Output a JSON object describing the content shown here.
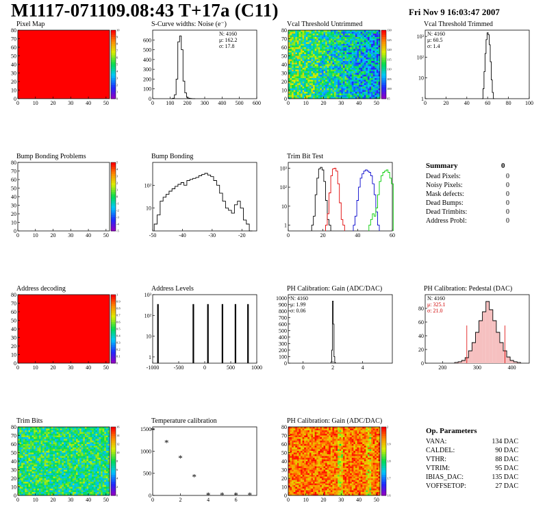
{
  "header": {
    "title": "M1117-071109.08:43 T+17a (C11)",
    "date": "Fri Nov  9 16:03:47 2007"
  },
  "colors": {
    "red": "#ff0000",
    "black": "#000000",
    "blue": "#0000cc",
    "green": "#00cc00",
    "darkred": "#cc0000"
  },
  "chart_data": [
    {
      "id": "pixel-map",
      "type": "heatmap",
      "title": "Pixel Map",
      "xlim": [
        0,
        52
      ],
      "ylim": [
        0,
        80
      ],
      "xticks": [
        "0",
        "10",
        "20",
        "30",
        "40",
        "50"
      ],
      "yticks": [
        "0",
        "10",
        "20",
        "30",
        "40",
        "50",
        "60",
        "70",
        "80"
      ],
      "fill": "uniform",
      "palette": "rainbow",
      "value": 10,
      "zticks": [
        "10",
        "9",
        "8",
        "7",
        "6",
        "5",
        "4",
        "3",
        "2",
        "1",
        "0"
      ]
    },
    {
      "id": "scurve",
      "type": "bar",
      "title": "S-Curve widths: Noise (e⁻)",
      "xlim": [
        0,
        600
      ],
      "ylim": [
        0,
        700
      ],
      "xticks": [
        "0",
        "100",
        "200",
        "300",
        "400",
        "500",
        "600"
      ],
      "yticks": [
        "0",
        "100",
        "200",
        "300",
        "400",
        "500",
        "600"
      ],
      "x": [
        110,
        120,
        130,
        140,
        150,
        160,
        170,
        180,
        190,
        200,
        210,
        220,
        230,
        240
      ],
      "values": [
        0,
        5,
        40,
        200,
        580,
        640,
        500,
        180,
        60,
        15,
        5,
        2,
        1,
        0
      ],
      "stats": [
        "N: 4160",
        "μ: 162.2",
        "σ: 17.8"
      ]
    },
    {
      "id": "vcal-untrimmed",
      "type": "heatmap",
      "title": "Vcal Threshold Untrimmed",
      "xlim": [
        0,
        52
      ],
      "ylim": [
        0,
        80
      ],
      "xticks": [
        "0",
        "10",
        "20",
        "30",
        "40",
        "50"
      ],
      "yticks": [
        "0",
        "10",
        "20",
        "30",
        "40",
        "50",
        "60",
        "70",
        "80"
      ],
      "fill": "noise",
      "palette": "rainbow",
      "zticks": [
        "130",
        "125",
        "120",
        "115",
        "110",
        "105",
        "100",
        "95"
      ]
    },
    {
      "id": "vcal-trimmed",
      "type": "bar",
      "title": "Vcal Threshold Trimmed",
      "log": true,
      "xlim": [
        0,
        100
      ],
      "ylim": [
        1,
        2000
      ],
      "xticks": [
        "0",
        "20",
        "40",
        "60",
        "80",
        "100"
      ],
      "yticks": [
        "1",
        "10",
        "10²",
        "10³"
      ],
      "x": [
        55,
        56,
        57,
        58,
        59,
        60,
        61,
        62,
        63,
        64,
        65,
        66
      ],
      "values": [
        1,
        3,
        20,
        150,
        700,
        1500,
        1200,
        400,
        60,
        8,
        2,
        1
      ],
      "stats": [
        "N: 4160",
        "μ: 60.5",
        "σ:  1.4"
      ]
    },
    {
      "id": "bump-problems",
      "type": "heatmap",
      "title": "Bump Bonding Problems",
      "xlim": [
        0,
        52
      ],
      "ylim": [
        0,
        80
      ],
      "xticks": [
        "0",
        "10",
        "20",
        "30",
        "40",
        "50"
      ],
      "yticks": [
        "0",
        "10",
        "20",
        "30",
        "40",
        "50",
        "60",
        "70",
        "80"
      ],
      "fill": "empty",
      "palette": "rainbow",
      "zticks": [
        "5",
        "4",
        "3",
        "2",
        "1",
        "0",
        "-1",
        "-2",
        "-3",
        "-4",
        "-5"
      ]
    },
    {
      "id": "bump-bonding",
      "type": "line",
      "title": "Bump Bonding",
      "log": true,
      "xlim": [
        -50,
        -15
      ],
      "ylim": [
        1,
        1000
      ],
      "xticks": [
        "-50",
        "-40",
        "-30",
        "-20"
      ],
      "yticks": [
        "10",
        "10²"
      ],
      "x": [
        -49,
        -48,
        -47,
        -46,
        -45,
        -44,
        -43,
        -42,
        -41,
        -40,
        -39,
        -38,
        -37,
        -36,
        -35,
        -34,
        -33,
        -32,
        -31,
        -30,
        -29,
        -28,
        -27,
        -26,
        -25,
        -24,
        -23,
        -22,
        -21,
        -20,
        -19,
        -18,
        -17
      ],
      "values": [
        2,
        5,
        20,
        30,
        40,
        55,
        70,
        90,
        110,
        130,
        100,
        160,
        180,
        200,
        220,
        260,
        300,
        330,
        280,
        240,
        160,
        100,
        45,
        20,
        10,
        8,
        6,
        14,
        20,
        10,
        3,
        2,
        1
      ]
    },
    {
      "id": "trim-bit-test",
      "type": "line",
      "title": "Trim Bit Test",
      "log": true,
      "xlim": [
        0,
        60
      ],
      "ylim": [
        0.5,
        2000
      ],
      "xticks": [
        "0",
        "20",
        "40",
        "60"
      ],
      "yticks": [
        "1",
        "10",
        "10²",
        "10³"
      ],
      "series": [
        {
          "color": "black",
          "x": [
            14,
            15,
            16,
            17,
            18,
            19,
            20,
            21,
            22,
            23,
            24
          ],
          "values": [
            1,
            3,
            40,
            300,
            900,
            1100,
            800,
            200,
            20,
            2,
            1
          ]
        },
        {
          "color": "red",
          "x": [
            22,
            23,
            24,
            25,
            26,
            27,
            28,
            29,
            30,
            31,
            32
          ],
          "values": [
            1,
            4,
            50,
            400,
            900,
            1000,
            700,
            150,
            15,
            2,
            1
          ]
        },
        {
          "color": "blue",
          "x": [
            38,
            39,
            40,
            41,
            42,
            43,
            44,
            45,
            46,
            47,
            48,
            49,
            50,
            51,
            52
          ],
          "values": [
            1,
            3,
            20,
            100,
            300,
            500,
            700,
            800,
            700,
            600,
            400,
            150,
            40,
            5,
            1
          ]
        },
        {
          "color": "green",
          "x": [
            47,
            48,
            49,
            50,
            51,
            52,
            53,
            54,
            55,
            56,
            57,
            58,
            59,
            60
          ],
          "values": [
            1,
            2,
            4,
            3,
            8,
            40,
            200,
            400,
            600,
            700,
            800,
            600,
            300,
            150
          ]
        }
      ]
    },
    {
      "id": "address-decoding",
      "type": "heatmap",
      "title": "Address decoding",
      "xlim": [
        0,
        52
      ],
      "ylim": [
        0,
        80
      ],
      "xticks": [
        "0",
        "10",
        "20",
        "30",
        "40",
        "50"
      ],
      "yticks": [
        "0",
        "10",
        "20",
        "30",
        "40",
        "50",
        "60",
        "70",
        "80"
      ],
      "fill": "uniform",
      "palette": "rainbow",
      "value": 1,
      "zticks": [
        "1",
        "0.9",
        "0.8",
        "0.7",
        "0.6",
        "0.5",
        "0.4",
        "0.3",
        "0.2",
        "0.1",
        "0"
      ]
    },
    {
      "id": "address-levels",
      "type": "bar",
      "title": "Address Levels",
      "log": true,
      "xlim": [
        -1000,
        1000
      ],
      "ylim": [
        0.5,
        1000
      ],
      "xticks": [
        "-1000",
        "-500",
        "0",
        "500",
        "1000"
      ],
      "yticks": [
        "1",
        "10",
        "10²",
        "10³"
      ],
      "x": [
        -900,
        -220,
        60,
        340,
        590,
        830
      ],
      "values": [
        350,
        350,
        350,
        350,
        350,
        350
      ]
    },
    {
      "id": "ph-gain",
      "type": "bar",
      "title": "PH Calibration: Gain (ADC/DAC)",
      "xlim": [
        -1,
        6
      ],
      "ylim": [
        0,
        1050
      ],
      "xticks": [
        "0",
        "2",
        "4"
      ],
      "yticks": [
        "0",
        "100",
        "200",
        "300",
        "400",
        "500",
        "600",
        "700",
        "800",
        "900",
        "1000"
      ],
      "x": [
        1.9,
        1.95,
        2.0,
        2.05,
        2.1,
        2.15
      ],
      "values": [
        20,
        200,
        950,
        600,
        100,
        10
      ],
      "stats": [
        "N: 4160",
        "μ: 1.99",
        "σ: 0.06"
      ]
    },
    {
      "id": "ph-pedestal",
      "type": "bar",
      "title": "PH Calibration: Pedestal (DAC)",
      "xlim": [
        150,
        450
      ],
      "ylim": [
        0,
        100
      ],
      "xticks": [
        "200",
        "300",
        "400"
      ],
      "yticks": [
        "0",
        "20",
        "40",
        "60",
        "80"
      ],
      "x": [
        240,
        250,
        260,
        270,
        280,
        290,
        300,
        310,
        320,
        330,
        340,
        350,
        360,
        370,
        380,
        390,
        400,
        410,
        420
      ],
      "values": [
        1,
        2,
        4,
        8,
        18,
        30,
        45,
        62,
        75,
        90,
        78,
        62,
        45,
        30,
        18,
        9,
        4,
        2,
        1
      ],
      "stats": [
        "N: 4160",
        "μ: 325.1",
        "σ: 21.0"
      ]
    },
    {
      "id": "trim-bits",
      "type": "heatmap",
      "title": "Trim Bits",
      "xlim": [
        0,
        52
      ],
      "ylim": [
        0,
        80
      ],
      "xticks": [
        "0",
        "10",
        "20",
        "30",
        "40",
        "50"
      ],
      "yticks": [
        "0",
        "10",
        "20",
        "30",
        "40",
        "50",
        "60",
        "70",
        "80"
      ],
      "fill": "noise",
      "palette": "rainbow",
      "zticks": [
        "16",
        "14",
        "12",
        "10",
        "8",
        "6",
        "4",
        "2",
        "0"
      ]
    },
    {
      "id": "temperature",
      "type": "scatter",
      "title": "Temperature calibration",
      "xlim": [
        0,
        7.5
      ],
      "ylim": [
        0,
        1550
      ],
      "xticks": [
        "0",
        "2",
        "4",
        "6"
      ],
      "yticks": [
        "0",
        "500",
        "1000",
        "1500"
      ],
      "x": [
        0,
        1,
        2,
        3,
        4,
        5,
        6,
        7
      ],
      "values": [
        1480,
        1200,
        850,
        430,
        15,
        15,
        15,
        15
      ]
    },
    {
      "id": "ph-gain-map",
      "type": "heatmap",
      "title": "PH Calibration: Gain (ADC/DAC)",
      "xlim": [
        0,
        52
      ],
      "ylim": [
        0,
        80
      ],
      "xticks": [
        "0",
        "10",
        "20",
        "30",
        "40",
        "50"
      ],
      "yticks": [
        "0",
        "10",
        "20",
        "30",
        "40",
        "50",
        "60",
        "70",
        "80"
      ],
      "fill": "noise-hot",
      "palette": "rainbow",
      "zticks": [
        "2",
        "1.9",
        "1.8",
        "1.7",
        "1.6"
      ]
    }
  ],
  "summary": {
    "title": "Summary",
    "value": "0",
    "rows": [
      {
        "label": "Dead Pixels:",
        "value": "0"
      },
      {
        "label": "Noisy Pixels:",
        "value": "0"
      },
      {
        "label": "Mask defects:",
        "value": "0"
      },
      {
        "label": "Dead Bumps:",
        "value": "0"
      },
      {
        "label": "Dead Trimbits:",
        "value": "0"
      },
      {
        "label": "Address Probl:",
        "value": "0"
      }
    ]
  },
  "op_params": {
    "title": "Op. Parameters",
    "rows": [
      {
        "label": "VANA:",
        "value": "134 DAC"
      },
      {
        "label": "CALDEL:",
        "value": "90 DAC"
      },
      {
        "label": "VTHR:",
        "value": "88 DAC"
      },
      {
        "label": "VTRIM:",
        "value": "95 DAC"
      },
      {
        "label": "IBIAS_DAC:",
        "value": "135 DAC"
      },
      {
        "label": "VOFFSETOP:",
        "value": "27 DAC"
      }
    ]
  }
}
